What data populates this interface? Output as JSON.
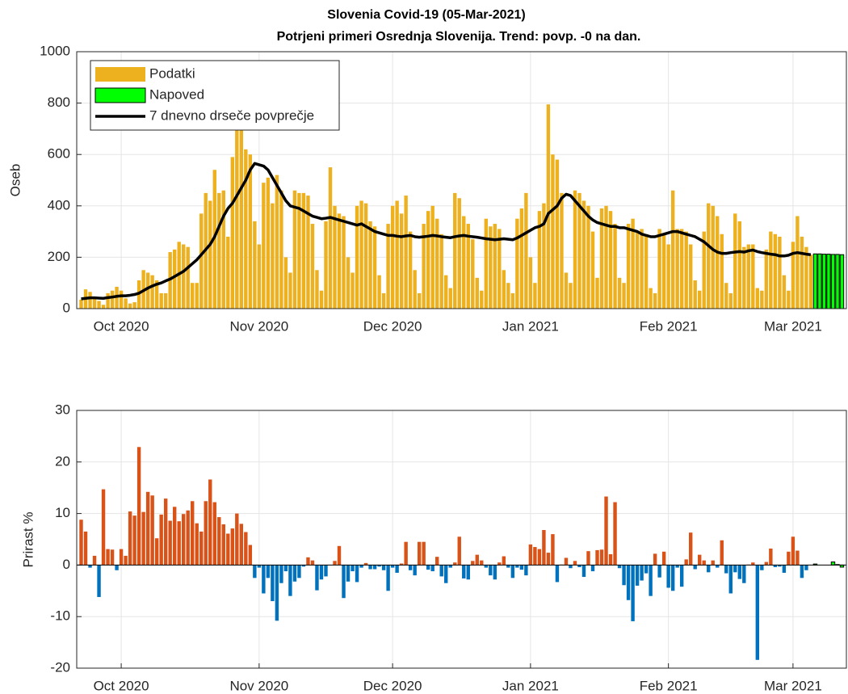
{
  "chart_data": [
    {
      "type": "bar",
      "title": "Slovenia Covid-19 (05-Mar-2021)",
      "subtitle": "Potrjeni primeri Osrednja Slovenija. Trend: povp. -0 na dan.",
      "ylabel": "Oseb",
      "xlim": [
        -1,
        172
      ],
      "xticks": [
        {
          "value": 9,
          "label": "Oct 2020"
        },
        {
          "value": 40,
          "label": "Nov 2020"
        },
        {
          "value": 70,
          "label": "Dec 2020"
        },
        {
          "value": 101,
          "label": "Jan 2021"
        },
        {
          "value": 132,
          "label": "Feb 2021"
        },
        {
          "value": 160,
          "label": "Mar 2021"
        }
      ],
      "ylim": [
        0,
        1000
      ],
      "yticks": [
        0,
        200,
        400,
        600,
        800,
        1000
      ],
      "grid": true,
      "legend": "northwest",
      "series": [
        {
          "name": "Podatki",
          "color": "#edb120",
          "values": [
            35,
            75,
            65,
            45,
            30,
            15,
            60,
            70,
            85,
            70,
            40,
            20,
            25,
            110,
            150,
            140,
            130,
            110,
            60,
            60,
            220,
            230,
            260,
            250,
            240,
            100,
            100,
            370,
            450,
            420,
            540,
            450,
            460,
            280,
            590,
            700,
            760,
            620,
            600,
            340,
            250,
            490,
            510,
            410,
            520,
            460,
            200,
            140,
            460,
            450,
            450,
            440,
            330,
            150,
            70,
            340,
            550,
            400,
            370,
            360,
            200,
            140,
            400,
            420,
            410,
            340,
            320,
            130,
            60,
            330,
            400,
            420,
            370,
            440,
            300,
            150,
            60,
            330,
            380,
            400,
            350,
            290,
            130,
            80,
            450,
            430,
            360,
            330,
            270,
            120,
            70,
            350,
            320,
            330,
            310,
            150,
            100,
            60,
            350,
            390,
            450,
            200,
            100,
            380,
            410,
            795,
            600,
            580,
            450,
            140,
            100,
            460,
            450,
            420,
            400,
            300,
            120,
            390,
            400,
            380,
            330,
            120,
            100,
            330,
            350,
            300,
            310,
            290,
            80,
            60,
            310,
            290,
            250,
            460,
            310,
            310,
            300,
            250,
            110,
            70,
            300,
            410,
            400,
            360,
            290,
            100,
            60,
            370,
            340,
            240,
            250,
            250,
            80,
            70,
            230,
            300,
            290,
            280,
            130,
            70,
            260,
            360,
            280,
            240,
            210
          ]
        },
        {
          "name": "Napoved",
          "color": "#00ff00",
          "edgecolor": "#000000",
          "values": [
            null,
            null,
            null,
            null,
            null,
            null,
            null,
            null,
            null,
            null,
            null,
            null,
            null,
            null,
            null,
            null,
            null,
            null,
            null,
            null,
            null,
            null,
            null,
            null,
            null,
            null,
            null,
            null,
            null,
            null,
            null,
            null,
            null,
            null,
            null,
            null,
            null,
            null,
            null,
            null,
            null,
            null,
            null,
            null,
            null,
            null,
            null,
            null,
            null,
            null,
            null,
            null,
            null,
            null,
            null,
            null,
            null,
            null,
            null,
            null,
            null,
            null,
            null,
            null,
            null,
            null,
            null,
            null,
            null,
            null,
            null,
            null,
            null,
            null,
            null,
            null,
            null,
            null,
            null,
            null,
            null,
            null,
            null,
            null,
            null,
            null,
            null,
            null,
            null,
            null,
            null,
            null,
            null,
            null,
            null,
            null,
            null,
            null,
            null,
            null,
            null,
            null,
            null,
            null,
            null,
            null,
            null,
            null,
            null,
            null,
            null,
            null,
            null,
            null,
            null,
            null,
            null,
            null,
            null,
            null,
            null,
            null,
            null,
            null,
            null,
            null,
            null,
            null,
            null,
            null,
            null,
            null,
            null,
            null,
            null,
            null,
            null,
            null,
            null,
            null,
            null,
            null,
            null,
            null,
            null,
            null,
            null,
            null,
            null,
            null,
            null,
            null,
            null,
            null,
            null,
            null,
            null,
            null,
            null,
            null,
            null,
            null,
            null,
            null,
            null,
            213,
            213,
            212,
            212,
            211,
            211,
            210
          ]
        },
        {
          "name": "7 dnevno drseče povprečje",
          "type": "line",
          "color": "#000000",
          "values": [
            38,
            40,
            42,
            42,
            41,
            40,
            43,
            45,
            48,
            50,
            50,
            52,
            55,
            60,
            70,
            80,
            88,
            95,
            100,
            108,
            115,
            125,
            135,
            145,
            160,
            175,
            190,
            210,
            230,
            250,
            280,
            320,
            360,
            390,
            410,
            440,
            470,
            500,
            540,
            565,
            560,
            555,
            540,
            510,
            480,
            450,
            420,
            400,
            395,
            390,
            380,
            370,
            360,
            355,
            350,
            352,
            355,
            350,
            345,
            340,
            335,
            330,
            325,
            330,
            320,
            310,
            300,
            295,
            290,
            285,
            285,
            282,
            280,
            283,
            285,
            280,
            278,
            280,
            282,
            285,
            283,
            280,
            278,
            276,
            280,
            283,
            285,
            282,
            280,
            278,
            275,
            272,
            270,
            268,
            270,
            272,
            270,
            268,
            275,
            285,
            295,
            305,
            315,
            320,
            330,
            370,
            385,
            400,
            430,
            445,
            440,
            420,
            400,
            380,
            360,
            345,
            335,
            330,
            325,
            320,
            320,
            315,
            315,
            310,
            305,
            300,
            290,
            285,
            280,
            280,
            285,
            290,
            295,
            300,
            300,
            295,
            290,
            285,
            280,
            270,
            260,
            245,
            230,
            220,
            215,
            215,
            218,
            220,
            222,
            220,
            225,
            228,
            222,
            218,
            215,
            212,
            210,
            205,
            205,
            208,
            215,
            218,
            215,
            212,
            210
          ]
        }
      ]
    },
    {
      "type": "bar",
      "ylabel": "Prirast %",
      "xlim": [
        -1,
        172
      ],
      "xticks": [
        {
          "value": 9,
          "label": "Oct 2020"
        },
        {
          "value": 40,
          "label": "Nov 2020"
        },
        {
          "value": 70,
          "label": "Dec 2020"
        },
        {
          "value": 101,
          "label": "Jan 2021"
        },
        {
          "value": 132,
          "label": "Feb 2021"
        },
        {
          "value": 160,
          "label": "Mar 2021"
        }
      ],
      "ylim": [
        -20,
        30
      ],
      "yticks": [
        -20,
        -10,
        0,
        10,
        20,
        30
      ],
      "grid": true,
      "series": [
        {
          "positive_color": "#d95319",
          "negative_color": "#0072bd",
          "values": [
            8.8,
            6.5,
            -0.5,
            1.8,
            -6.2,
            14.7,
            3.1,
            3.0,
            -1.0,
            3.1,
            1.8,
            10.4,
            9.6,
            22.9,
            10.3,
            14.2,
            13.5,
            5.2,
            9.8,
            12.9,
            8.6,
            11.3,
            8.5,
            9.9,
            10.6,
            12.4,
            8.1,
            6.5,
            12.4,
            16.6,
            12.2,
            9.3,
            7.9,
            6.1,
            7.1,
            10.0,
            8.0,
            6.4,
            3.9,
            -2.5,
            -0.5,
            -5.5,
            -2.5,
            -7.0,
            -10.8,
            -3.5,
            -1.2,
            -6.0,
            -3.2,
            -2.5,
            -0.3,
            1.5,
            0.9,
            -4.9,
            -2.8,
            -2.2,
            0,
            0.8,
            3.7,
            -6.4,
            -3.2,
            -1.2,
            -3.3,
            -0.5,
            0.4,
            -0.8,
            -0.8,
            -0.3,
            -1.0,
            -5.0,
            -0.5,
            -1.5,
            0.3,
            4.5,
            -1.0,
            -2.0,
            4.5,
            4.5,
            -0.9,
            -1.2,
            1.6,
            -2.2,
            -3.5,
            -0.5,
            0.5,
            5.5,
            -2.6,
            -2.8,
            0.8,
            2.0,
            0.9,
            -0.5,
            -2.0,
            -2.8,
            0.5,
            1.7,
            -0.5,
            -2.5,
            -0.5,
            -0.9,
            -2.0,
            4.0,
            3.5,
            3.1,
            6.8,
            2.4,
            6.0,
            -3.3,
            0.1,
            1.4,
            -0.6,
            0.8,
            -0.4,
            -2.3,
            2.7,
            -1.2,
            2.9,
            3.0,
            13.3,
            2.1,
            12.2,
            -0.6,
            -3.9,
            -6.8,
            -10.9,
            -4.0,
            -3.0,
            -1.6,
            -6.0,
            2.2,
            -2.4,
            2.6,
            -4.4,
            -5.0,
            -0.5,
            -4.2,
            1.1,
            6.3,
            -0.8,
            2.0,
            0.9,
            -1.4,
            0.9,
            -0.5,
            4.8,
            -1.6,
            -5.5,
            -1.4,
            -2.7,
            -3.5,
            0.1,
            0.5,
            -18.4,
            -1.0,
            0.6,
            3.2,
            -0.4,
            -0.3,
            -1.5,
            2.6,
            5.5,
            2.8,
            -2.5,
            -1.0,
            0.0
          ]
        },
        {
          "color": "#00ff00",
          "edgecolor": "#000000",
          "values": [
            null,
            null,
            null,
            null,
            null,
            null,
            null,
            null,
            null,
            null,
            null,
            null,
            null,
            null,
            null,
            null,
            null,
            null,
            null,
            null,
            null,
            null,
            null,
            null,
            null,
            null,
            null,
            null,
            null,
            null,
            null,
            null,
            null,
            null,
            null,
            null,
            null,
            null,
            null,
            null,
            null,
            null,
            null,
            null,
            null,
            null,
            null,
            null,
            null,
            null,
            null,
            null,
            null,
            null,
            null,
            null,
            null,
            null,
            null,
            null,
            null,
            null,
            null,
            null,
            null,
            null,
            null,
            null,
            null,
            null,
            null,
            null,
            null,
            null,
            null,
            null,
            null,
            null,
            null,
            null,
            null,
            null,
            null,
            null,
            null,
            null,
            null,
            null,
            null,
            null,
            null,
            null,
            null,
            null,
            null,
            null,
            null,
            null,
            null,
            null,
            null,
            null,
            null,
            null,
            null,
            null,
            null,
            null,
            null,
            null,
            null,
            null,
            null,
            null,
            null,
            null,
            null,
            null,
            null,
            null,
            null,
            null,
            null,
            null,
            null,
            null,
            null,
            null,
            null,
            null,
            null,
            null,
            null,
            null,
            null,
            null,
            null,
            null,
            null,
            null,
            null,
            null,
            null,
            null,
            null,
            null,
            null,
            null,
            null,
            null,
            null,
            null,
            null,
            null,
            null,
            null,
            null,
            null,
            null,
            null,
            null,
            null,
            null,
            null,
            null,
            0.2,
            0,
            0,
            0,
            0.6,
            0.1,
            -0.4
          ]
        }
      ]
    }
  ]
}
